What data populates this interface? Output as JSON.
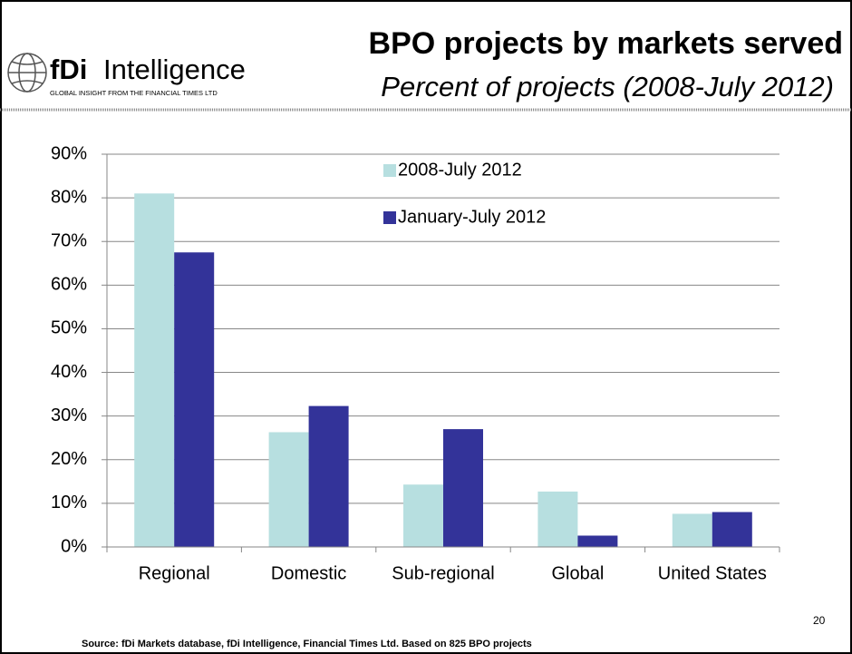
{
  "slide": {
    "logo": {
      "brand": "fDi",
      "name": "Intelligence",
      "tagline": "GLOBAL INSIGHT FROM THE FINANCIAL TIMES LTD"
    },
    "source": "Source: fDi Markets database, fDi Intelligence,  Financial Times Ltd.  Based on 825 BPO projects",
    "page_number": "20"
  },
  "chart_data": {
    "type": "bar",
    "title": "BPO projects by markets served",
    "subtitle": "Percent of projects (2008-July 2012)",
    "categories": [
      "Regional",
      "Domestic",
      "Sub-regional",
      "Global",
      "United States"
    ],
    "series": [
      {
        "name": "2008-July 2012",
        "color": "#b7dfe0",
        "values": [
          81,
          26.3,
          14.3,
          12.7,
          7.6
        ]
      },
      {
        "name": "January-July 2012",
        "color": "#333399",
        "values": [
          67.5,
          32.3,
          27,
          2.6,
          8
        ]
      }
    ],
    "ylim": [
      0,
      90
    ],
    "yticks": [
      {
        "value": 0,
        "label": "0%"
      },
      {
        "value": 10,
        "label": "10%"
      },
      {
        "value": 20,
        "label": "20%"
      },
      {
        "value": 30,
        "label": "30%"
      },
      {
        "value": 40,
        "label": "40%"
      },
      {
        "value": 50,
        "label": "50%"
      },
      {
        "value": 60,
        "label": "60%"
      },
      {
        "value": 70,
        "label": "70%"
      },
      {
        "value": 80,
        "label": "80%"
      },
      {
        "value": 90,
        "label": "90%"
      }
    ],
    "grid": true,
    "legend": "top-center"
  }
}
